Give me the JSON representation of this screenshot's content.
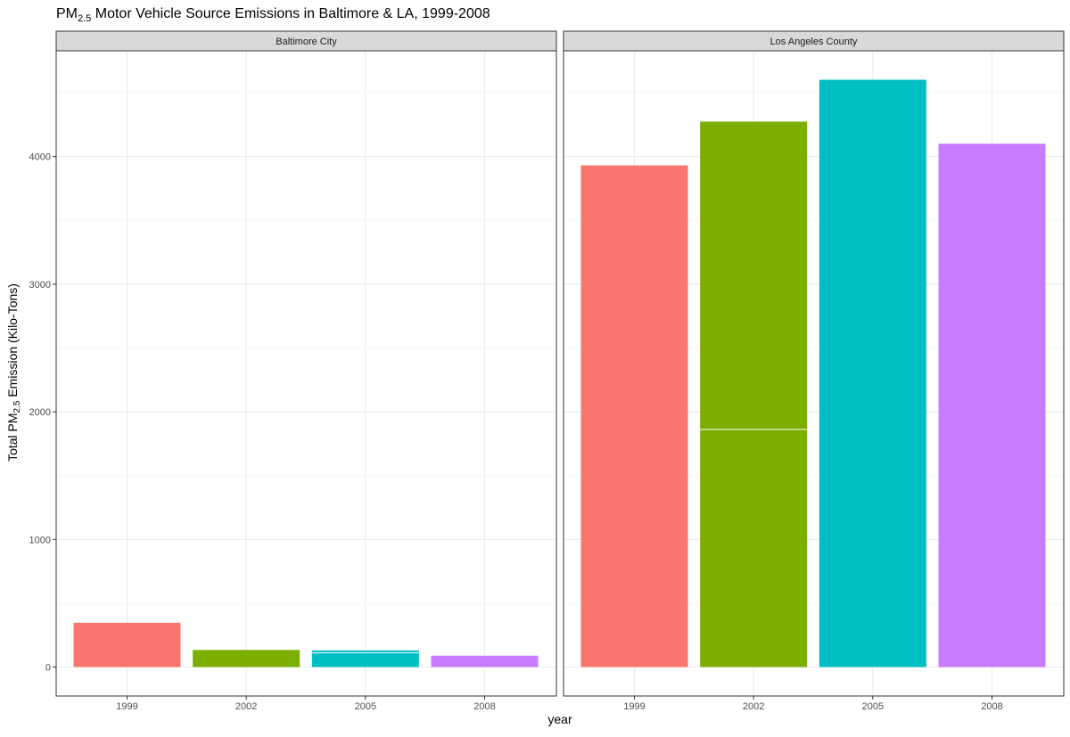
{
  "title": {
    "prefix": "PM",
    "sub": "2.5",
    "suffix": " Motor Vehicle Source Emissions in Baltimore & LA, 1999-2008"
  },
  "ylabel": {
    "prefix": "Total PM",
    "sub": "2.5",
    "suffix": " Emission (Kilo-Tons)"
  },
  "xlabel": "year",
  "chart_data": {
    "type": "bar",
    "categories": [
      "1999",
      "2002",
      "2005",
      "2008"
    ],
    "ylim": [
      0,
      4800
    ],
    "yticks": [
      0,
      1000,
      2000,
      3000,
      4000
    ],
    "grid": true,
    "fill_colors": [
      "#F8766D",
      "#7CAE00",
      "#00BFC4",
      "#C77CFF"
    ],
    "panels": [
      {
        "strip": "Baltimore City",
        "bars": [
          {
            "year": "1999",
            "value": 347,
            "segments": [
              347
            ]
          },
          {
            "year": "2002",
            "value": 134,
            "segments": [
              134
            ]
          },
          {
            "year": "2005",
            "value": 130,
            "segments": [
              112,
              18
            ]
          },
          {
            "year": "2008",
            "value": 89,
            "segments": [
              89
            ]
          }
        ]
      },
      {
        "strip": "Los Angeles County",
        "bars": [
          {
            "year": "1999",
            "value": 3931,
            "segments": [
              3931
            ]
          },
          {
            "year": "2002",
            "value": 4274,
            "segments": [
              1862,
              2412
            ]
          },
          {
            "year": "2005",
            "value": 4602,
            "segments": [
              4602
            ]
          },
          {
            "year": "2008",
            "value": 4101,
            "segments": [
              4101
            ]
          }
        ]
      }
    ]
  }
}
